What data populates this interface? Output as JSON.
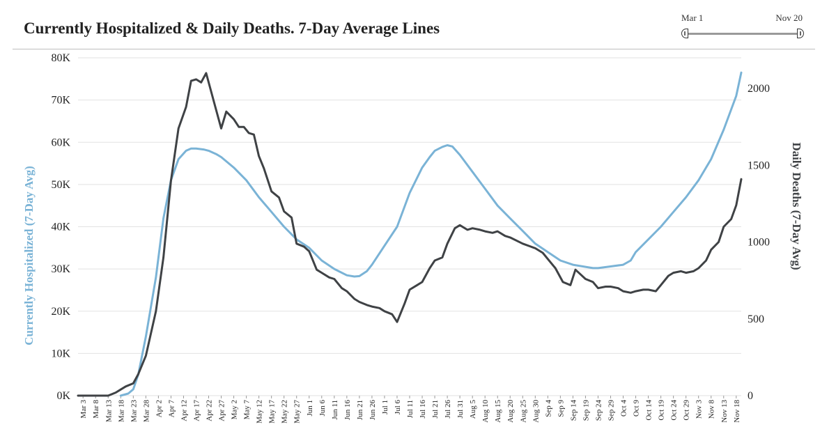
{
  "title": "Currently Hospitalized & Daily Deaths. 7-Day Average Lines",
  "date_range": {
    "start_label": "Mar 1",
    "end_label": "Nov 20"
  },
  "colors": {
    "hospitalized": "#7ab3d6",
    "deaths": "#3f4245",
    "grid": "#e2e2e2"
  },
  "chart_data": {
    "type": "line",
    "title": "Currently Hospitalized & Daily Deaths. 7-Day Average Lines",
    "x_label": "",
    "x_ticks": [
      "Mar 3",
      "Mar 8",
      "Mar 13",
      "Mar 18",
      "Mar 23",
      "Mar 28",
      "Apr 2",
      "Apr 7",
      "Apr 12",
      "Apr 17",
      "Apr 22",
      "Apr 27",
      "May 2",
      "May 7",
      "May 12",
      "May 17",
      "May 22",
      "May 27",
      "Jun 1",
      "Jun 6",
      "Jun 11",
      "Jun 16",
      "Jun 21",
      "Jun 26",
      "Jul 1",
      "Jul 6",
      "Jul 11",
      "Jul 16",
      "Jul 21",
      "Jul 26",
      "Jul 31",
      "Aug 5",
      "Aug 10",
      "Aug 15",
      "Aug 20",
      "Aug 25",
      "Aug 30",
      "Sep 4",
      "Sep 9",
      "Sep 14",
      "Sep 19",
      "Sep 24",
      "Sep 29",
      "Oct 4",
      "Oct 9",
      "Oct 14",
      "Oct 19",
      "Oct 24",
      "Oct 29",
      "Nov 3",
      "Nov 8",
      "Nov 13",
      "Nov 18"
    ],
    "y_left": {
      "label": "Currently Hospitalized (7-Day Avg)",
      "ticks": [
        "0K",
        "10K",
        "20K",
        "30K",
        "40K",
        "50K",
        "60K",
        "70K",
        "80K"
      ],
      "min": 0,
      "max": 80000
    },
    "y_right": {
      "label": "Daily Deaths (7-Day Avg)",
      "ticks": [
        "0",
        "500",
        "1000",
        "1500",
        "2000"
      ],
      "min": 0,
      "max": 2200
    },
    "grid": true,
    "series": [
      {
        "axis": "left",
        "x": [
          "Mar 1",
          "Mar 18",
          "Mar 21",
          "Mar 23",
          "Mar 25",
          "Mar 28",
          "Apr 1",
          "Apr 4",
          "Apr 7",
          "Apr 10",
          "Apr 13",
          "Apr 15",
          "Apr 17",
          "Apr 20",
          "Apr 22",
          "Apr 25",
          "Apr 27",
          "May 2",
          "May 7",
          "May 12",
          "May 17",
          "May 22",
          "May 27",
          "Jun 1",
          "Jun 6",
          "Jun 11",
          "Jun 16",
          "Jun 19",
          "Jun 21",
          "Jun 24",
          "Jun 26",
          "Jul 1",
          "Jul 6",
          "Jul 11",
          "Jul 16",
          "Jul 19",
          "Jul 21",
          "Jul 24",
          "Jul 26",
          "Jul 28",
          "Jul 31",
          "Aug 5",
          "Aug 10",
          "Aug 15",
          "Aug 20",
          "Aug 25",
          "Aug 30",
          "Sep 4",
          "Sep 9",
          "Sep 14",
          "Sep 19",
          "Sep 22",
          "Sep 24",
          "Sep 29",
          "Oct 4",
          "Oct 7",
          "Oct 9",
          "Oct 14",
          "Oct 19",
          "Oct 24",
          "Oct 29",
          "Nov 3",
          "Nov 8",
          "Nov 13",
          "Nov 18",
          "Nov 20"
        ],
        "y": [
          null,
          0,
          500,
          1500,
          5000,
          14000,
          28000,
          42000,
          51000,
          56000,
          58000,
          58500,
          58500,
          58300,
          58000,
          57200,
          56500,
          54000,
          51000,
          47000,
          43500,
          40000,
          37000,
          35000,
          32000,
          30000,
          28500,
          28200,
          28300,
          29500,
          31000,
          35500,
          40000,
          48000,
          54000,
          56500,
          58000,
          58900,
          59300,
          59000,
          57000,
          53000,
          49000,
          45000,
          42000,
          39000,
          36000,
          34000,
          32000,
          31000,
          30500,
          30200,
          30200,
          30600,
          31000,
          32000,
          34000,
          37000,
          40000,
          43500,
          47000,
          51000,
          56000,
          63000,
          71000,
          76500
        ]
      },
      {
        "axis": "right",
        "x": [
          "Mar 1",
          "Mar 13",
          "Mar 16",
          "Mar 18",
          "Mar 20",
          "Mar 23",
          "Mar 25",
          "Mar 28",
          "Apr 1",
          "Apr 4",
          "Apr 7",
          "Apr 10",
          "Apr 13",
          "Apr 15",
          "Apr 17",
          "Apr 19",
          "Apr 21",
          "Apr 23",
          "Apr 25",
          "Apr 27",
          "Apr 29",
          "May 2",
          "May 4",
          "May 6",
          "May 8",
          "May 10",
          "May 12",
          "May 14",
          "May 17",
          "May 20",
          "May 22",
          "May 25",
          "May 27",
          "May 30",
          "Jun 1",
          "Jun 4",
          "Jun 6",
          "Jun 9",
          "Jun 11",
          "Jun 14",
          "Jun 16",
          "Jun 19",
          "Jun 21",
          "Jun 24",
          "Jun 26",
          "Jun 29",
          "Jul 1",
          "Jul 4",
          "Jul 6",
          "Jul 9",
          "Jul 11",
          "Jul 14",
          "Jul 16",
          "Jul 19",
          "Jul 21",
          "Jul 24",
          "Jul 26",
          "Jul 29",
          "Jul 31",
          "Aug 3",
          "Aug 5",
          "Aug 8",
          "Aug 10",
          "Aug 13",
          "Aug 15",
          "Aug 18",
          "Aug 20",
          "Aug 25",
          "Aug 30",
          "Sep 2",
          "Sep 5",
          "Sep 7",
          "Sep 10",
          "Sep 13",
          "Sep 15",
          "Sep 17",
          "Sep 19",
          "Sep 22",
          "Sep 24",
          "Sep 27",
          "Sep 29",
          "Oct 2",
          "Oct 4",
          "Oct 7",
          "Oct 9",
          "Oct 12",
          "Oct 14",
          "Oct 17",
          "Oct 19",
          "Oct 22",
          "Oct 24",
          "Oct 27",
          "Oct 29",
          "Nov 1",
          "Nov 3",
          "Nov 6",
          "Nov 8",
          "Nov 11",
          "Nov 13",
          "Nov 16",
          "Nov 18",
          "Nov 20"
        ],
        "y": [
          0,
          0,
          20,
          40,
          60,
          80,
          140,
          260,
          550,
          900,
          1400,
          1740,
          1880,
          2050,
          2060,
          2040,
          2100,
          1980,
          1860,
          1740,
          1850,
          1800,
          1750,
          1750,
          1710,
          1700,
          1560,
          1480,
          1330,
          1290,
          1200,
          1160,
          990,
          970,
          940,
          820,
          800,
          770,
          760,
          700,
          680,
          630,
          610,
          590,
          580,
          570,
          550,
          530,
          480,
          600,
          690,
          720,
          740,
          830,
          880,
          900,
          990,
          1090,
          1110,
          1080,
          1090,
          1080,
          1070,
          1060,
          1070,
          1040,
          1030,
          990,
          960,
          930,
          870,
          830,
          740,
          720,
          820,
          790,
          760,
          740,
          700,
          710,
          710,
          700,
          680,
          670,
          680,
          690,
          690,
          680,
          720,
          780,
          800,
          810,
          800,
          810,
          830,
          880,
          950,
          1000,
          1100,
          1150,
          1240,
          1410
        ]
      }
    ]
  }
}
